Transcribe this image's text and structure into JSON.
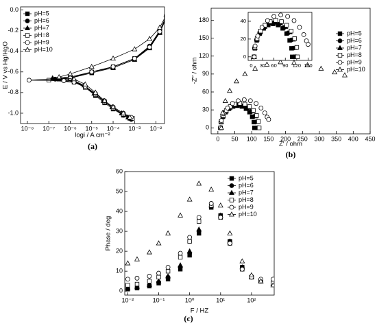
{
  "chart_data": [
    {
      "type": "line",
      "label": "(a)",
      "xlabel": "logi / A cm⁻²",
      "ylabel": "E / V vs Hg/HgO",
      "xscale": "log",
      "xlim": [
        4.8e-09,
        0.025
      ],
      "ylim": [
        -1.1,
        0.03
      ],
      "xticks": [
        {
          "value": 1e-08,
          "label": "10⁻⁸"
        },
        {
          "value": 1e-07,
          "label": "10⁻⁷"
        },
        {
          "value": 1e-06,
          "label": "10⁻⁶"
        },
        {
          "value": 1e-05,
          "label": "10⁻⁵"
        },
        {
          "value": 0.0001,
          "label": "10⁻⁴"
        },
        {
          "value": 0.001,
          "label": "10⁻³"
        },
        {
          "value": 0.01,
          "label": "10⁻²"
        }
      ],
      "yticks": [
        {
          "value": -1,
          "label": "-1.0"
        },
        -0.8,
        -0.6,
        -0.4,
        -0.2,
        {
          "value": 0,
          "label": "0.0"
        }
      ],
      "legend": "upper left",
      "series": [
        {
          "name": "pH=5",
          "color": "#000000",
          "marker": "square",
          "filled": true,
          "x": [
            0.0006,
            0.0003,
            0.0001,
            4e-05,
            1.5e-05,
            5e-06,
            1.5e-06,
            3e-07,
            1e-06,
            1e-05,
            0.0001,
            0.001,
            0.005,
            0.015,
            0.03
          ],
          "values": [
            -1.05,
            -1.02,
            -0.96,
            -0.9,
            -0.83,
            -0.75,
            -0.69,
            -0.67,
            -0.66,
            -0.61,
            -0.56,
            -0.48,
            -0.36,
            -0.22,
            -0.07
          ]
        },
        {
          "name": "pH=6",
          "color": "#000000",
          "marker": "circle",
          "filled": true,
          "x": [
            0.0007,
            0.0003,
            0.0001,
            4e-05,
            1.5e-05,
            5e-06,
            1.5e-06,
            2e-07,
            1e-06,
            1e-05,
            0.0001,
            0.001,
            0.005,
            0.015,
            0.03
          ],
          "values": [
            -1.06,
            -1.02,
            -0.95,
            -0.89,
            -0.82,
            -0.74,
            -0.69,
            -0.67,
            -0.66,
            -0.6,
            -0.55,
            -0.47,
            -0.35,
            -0.2,
            -0.06
          ]
        },
        {
          "name": "pH=7",
          "color": "#000000",
          "marker": "triangle",
          "filled": true,
          "x": [
            0.0005,
            0.00025,
            9e-05,
            3.5e-05,
            1.3e-05,
            4.5e-06,
            1.3e-06,
            1.5e-07,
            1e-06,
            1e-05,
            0.0001,
            0.001,
            0.005,
            0.015,
            0.03
          ],
          "values": [
            -1.04,
            -1.0,
            -0.94,
            -0.88,
            -0.81,
            -0.73,
            -0.68,
            -0.66,
            -0.65,
            -0.6,
            -0.56,
            -0.48,
            -0.37,
            -0.22,
            -0.08
          ]
        },
        {
          "name": "pH=8",
          "color": "#000000",
          "marker": "square",
          "filled": false,
          "x": [
            0.0008,
            0.0003,
            0.0001,
            4e-05,
            1.5e-05,
            5e-06,
            1.5e-06,
            1e-07,
            1e-06,
            1e-05,
            0.0001,
            0.001,
            0.005,
            0.015,
            0.03
          ],
          "values": [
            -1.05,
            -1.01,
            -0.95,
            -0.89,
            -0.82,
            -0.75,
            -0.7,
            -0.68,
            -0.66,
            -0.6,
            -0.55,
            -0.47,
            -0.36,
            -0.21,
            -0.06
          ]
        },
        {
          "name": "pH=9",
          "color": "#000000",
          "marker": "circle",
          "filled": false,
          "x": [
            0.0007,
            0.0003,
            0.0001,
            4e-05,
            1.5e-05,
            5e-06,
            1.5e-06,
            5e-07,
            1.2e-08,
            1e-06,
            1e-05,
            0.0001,
            0.001,
            0.005,
            0.015,
            0.03
          ],
          "values": [
            -1.04,
            -1.0,
            -0.94,
            -0.88,
            -0.81,
            -0.74,
            -0.7,
            -0.685,
            -0.68,
            -0.66,
            -0.6,
            -0.55,
            -0.47,
            -0.36,
            -0.21,
            -0.06
          ]
        },
        {
          "name": "pH=10",
          "color": "#000000",
          "marker": "triangle",
          "filled": false,
          "x": [
            0.0006,
            0.0003,
            0.0001,
            4e-05,
            1.5e-05,
            5e-06,
            1.5e-06,
            3e-07,
            1e-06,
            1e-05,
            0.0001,
            0.001,
            0.005,
            0.015,
            0.03
          ],
          "values": [
            -1.04,
            -1.0,
            -0.94,
            -0.88,
            -0.8,
            -0.72,
            -0.67,
            -0.65,
            -0.62,
            -0.55,
            -0.47,
            -0.38,
            -0.28,
            -0.17,
            -0.05
          ]
        }
      ]
    },
    {
      "type": "scatter",
      "label": "(b)",
      "xlabel": "Z′ / ohm",
      "ylabel": "-Z″ / ohm",
      "xlim": [
        -20,
        450
      ],
      "ylim": [
        -10,
        200
      ],
      "xticks": [
        0,
        50,
        100,
        150,
        200,
        250,
        300,
        350,
        400,
        450
      ],
      "yticks": [
        0,
        30,
        60,
        90,
        120,
        150,
        180
      ],
      "legend": "right",
      "series": [
        {
          "name": "pH=5",
          "color": "#000000",
          "marker": "square",
          "filled": true,
          "x": [
            8,
            9.7,
            14.7,
            22.6,
            33,
            45,
            58,
            71,
            83,
            93.4,
            101.3,
            106.3,
            108
          ],
          "values": [
            0,
            9.6,
            18.5,
            26.2,
            32,
            35.7,
            37,
            35.7,
            32,
            26.2,
            18.5,
            9.6,
            0
          ]
        },
        {
          "name": "pH=6",
          "color": "#000000",
          "marker": "circle",
          "filled": true,
          "x": [
            7,
            8.8,
            14.1,
            22.5,
            33.5,
            46.3,
            60,
            73.7,
            86.5,
            97.5,
            105.9,
            111.2,
            113
          ],
          "values": [
            0,
            9.8,
            19,
            26.9,
            32.9,
            36.7,
            38,
            36.7,
            32.9,
            26.9,
            19,
            9.8,
            0
          ]
        },
        {
          "name": "pH=7",
          "color": "#000000",
          "marker": "triangle",
          "filled": true,
          "x": [
            8,
            9.9,
            15.4,
            24.1,
            35.5,
            48.8,
            63,
            77.2,
            90.5,
            101.9,
            110.6,
            116.1,
            118
          ],
          "values": [
            0,
            10.1,
            19.5,
            27.6,
            33.8,
            37.7,
            39,
            37.7,
            33.8,
            27.6,
            19.5,
            10.1,
            0
          ]
        },
        {
          "name": "pH=8",
          "color": "#000000",
          "marker": "square",
          "filled": false,
          "x": [
            8,
            9.9,
            15.6,
            24.7,
            36.5,
            50.2,
            65,
            79.8,
            93.5,
            105.3,
            114.4,
            120.1,
            122
          ],
          "values": [
            0,
            10.6,
            20.5,
            29,
            35.5,
            39.6,
            41,
            39.6,
            35.5,
            29,
            20.5,
            10.6,
            0
          ]
        },
        {
          "name": "pH=9",
          "color": "#000000",
          "marker": "circle",
          "filled": false,
          "x": [
            8,
            10.4,
            17.4,
            28.5,
            43,
            59.9,
            78,
            96.1,
            113,
            127.5,
            138.6,
            145.6,
            150
          ],
          "values": [
            0,
            12.2,
            23.5,
            33.2,
            40.7,
            45.4,
            47,
            45.4,
            40.7,
            33.2,
            25,
            18,
            14
          ]
        },
        {
          "name": "pH=10",
          "color": "#000000",
          "marker": "triangle",
          "filled": false,
          "x": [
            10,
            14,
            22,
            35,
            55,
            80,
            110,
            145,
            185,
            225,
            265,
            305,
            345,
            375
          ],
          "values": [
            0,
            25,
            45,
            62,
            78,
            90,
            99,
            106,
            110,
            109,
            105,
            99,
            93,
            88
          ]
        }
      ]
    },
    {
      "type": "scatter",
      "xlim": [
        -8,
        160
      ],
      "ylim": [
        -4,
        50
      ],
      "xticks": [
        0,
        30,
        60,
        90,
        120,
        150
      ],
      "yticks": [
        0,
        20,
        40
      ]
    },
    {
      "type": "scatter",
      "label": "(c)",
      "xlabel": "F / HZ",
      "ylabel": "Phase / deg",
      "xscale": "log",
      "xlim": [
        0.008,
        540
      ],
      "ylim": [
        -2,
        60
      ],
      "xticks": [
        {
          "value": 0.01,
          "label": "10⁻²"
        },
        {
          "value": 0.1,
          "label": "10⁻¹"
        },
        {
          "value": 1,
          "label": "10⁰"
        },
        {
          "value": 10,
          "label": "10¹"
        },
        {
          "value": 100,
          "label": "10²"
        }
      ],
      "yticks": [
        0,
        10,
        20,
        30,
        40,
        50,
        60
      ],
      "legend": "upper right",
      "x": [
        0.01,
        0.02,
        0.05,
        0.1,
        0.2,
        0.5,
        1,
        2,
        5,
        10,
        20,
        50,
        100,
        200,
        500
      ],
      "series": [
        {
          "name": "pH=5",
          "color": "#000000",
          "marker": "square",
          "filled": true,
          "values": [
            1,
            1.5,
            2.5,
            4,
            6,
            11,
            18,
            29,
            42,
            38,
            25,
            12,
            7,
            5,
            4
          ]
        },
        {
          "name": "pH=6",
          "color": "#000000",
          "marker": "circle",
          "filled": true,
          "values": [
            1.2,
            1.8,
            3,
            4.5,
            7,
            12,
            19,
            30,
            42.5,
            38,
            25,
            12,
            7,
            5,
            3.5
          ]
        },
        {
          "name": "pH=7",
          "color": "#000000",
          "marker": "triangle",
          "filled": true,
          "values": [
            1.5,
            2,
            3.2,
            5,
            7.5,
            13,
            20,
            31,
            43,
            38,
            25,
            12,
            7,
            5,
            3.5
          ]
        },
        {
          "name": "pH=8",
          "color": "#000000",
          "marker": "square",
          "filled": false,
          "values": [
            3,
            3.5,
            5,
            7,
            10,
            17,
            25,
            35,
            43,
            37,
            24,
            11,
            7,
            5,
            4
          ]
        },
        {
          "name": "pH=9",
          "color": "#000000",
          "marker": "circle",
          "filled": false,
          "values": [
            6,
            6.5,
            7.5,
            9,
            12,
            19,
            27,
            37,
            44,
            37,
            24,
            11,
            7,
            6,
            6
          ]
        },
        {
          "name": "pH=10",
          "color": "#000000",
          "marker": "triangle",
          "filled": false,
          "values": [
            14,
            16,
            19.5,
            24,
            29,
            38,
            46,
            54,
            51,
            43,
            29,
            15,
            8,
            5,
            3
          ]
        }
      ]
    }
  ]
}
